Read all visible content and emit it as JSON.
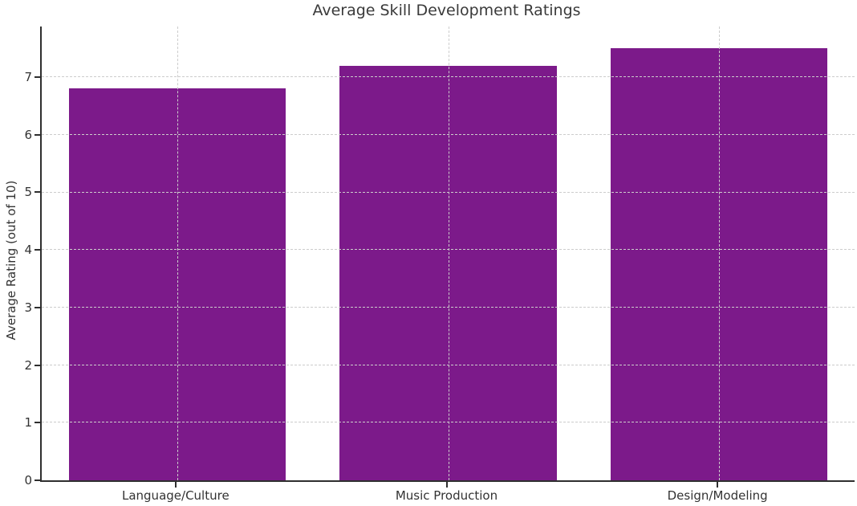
{
  "chart_data": {
    "type": "bar",
    "title": "Average Skill Development Ratings",
    "xlabel": "",
    "ylabel": "Average Rating (out of 10)",
    "categories": [
      "Language/Culture",
      "Music Production",
      "Design/Modeling"
    ],
    "values": [
      6.8,
      7.2,
      7.5
    ],
    "ylim": [
      0,
      7.88
    ],
    "yticks": [
      0,
      1,
      2,
      3,
      4,
      5,
      6,
      7
    ],
    "bar_width_fraction": 0.8,
    "grid": true,
    "legend": "none",
    "colors": {
      "bar": "#7c1a8a",
      "grid": "#cccccc",
      "axis": "#2f2f2f",
      "title_text": "#3a3a3a",
      "tick_text": "#333333"
    }
  }
}
